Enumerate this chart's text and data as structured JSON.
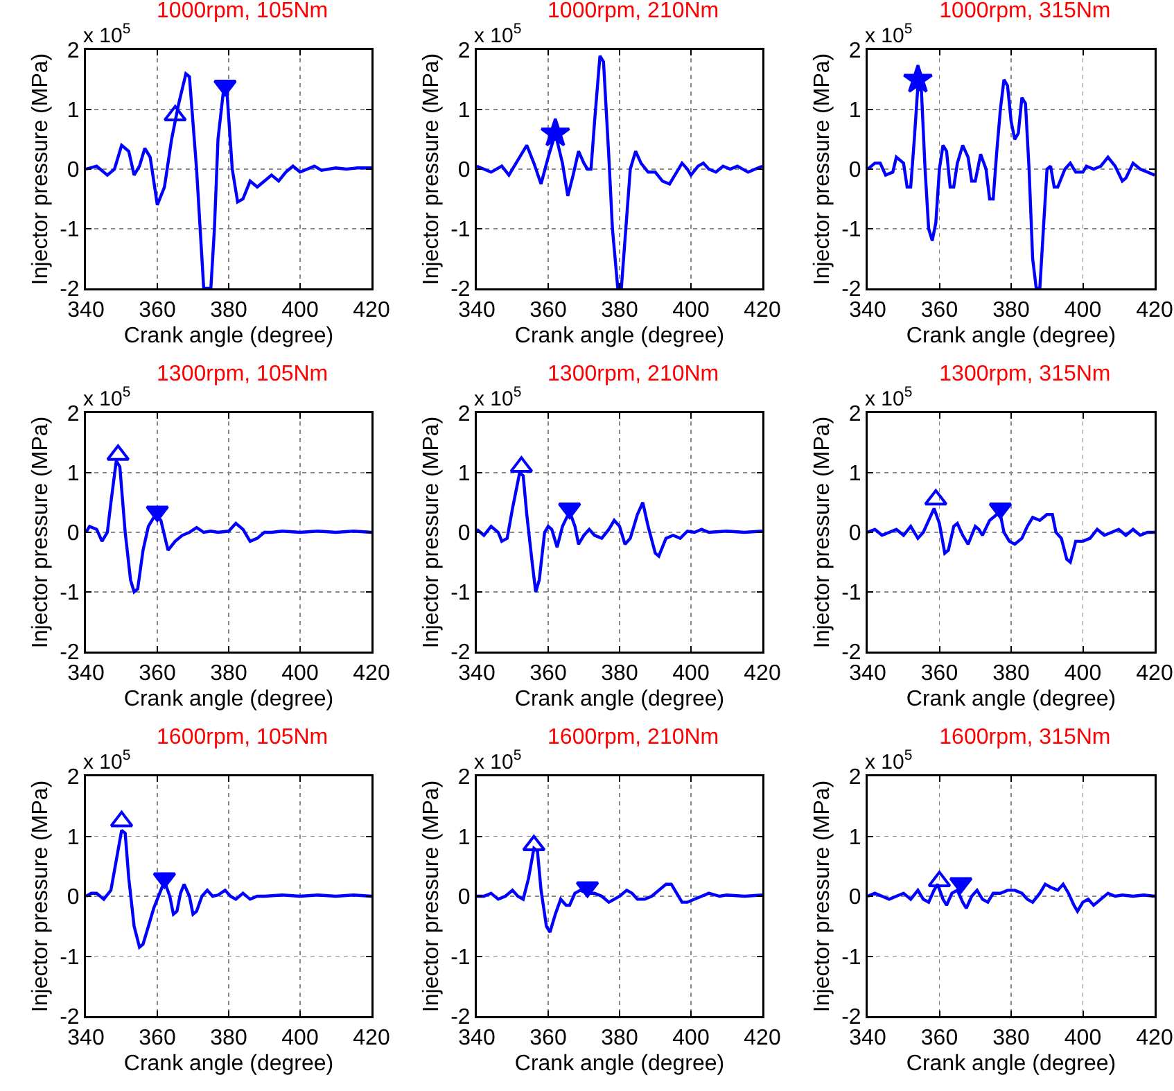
{
  "chart_data": [
    {
      "type": "line",
      "title": "1000rpm, 105Nm",
      "xlabel": "Crank angle (degree)",
      "ylabel": "Injector pressure (MPa)",
      "annotations": [
        "x 10$^{5}$"
      ],
      "xlim": [
        340,
        420
      ],
      "xticks": [
        340,
        360,
        380,
        400,
        420
      ],
      "ylim": [
        -2,
        2
      ],
      "yticks": [
        -2,
        -1,
        0,
        1,
        2
      ],
      "grid": true,
      "series": [
        {
          "type": "line",
          "color": "#0000ff",
          "marker": "none",
          "x": [
            340,
            343,
            346,
            348,
            350,
            352,
            353.5,
            355,
            356.5,
            358,
            360,
            362,
            364,
            366,
            368,
            369,
            371,
            372.5,
            373,
            375,
            376,
            377,
            378.5,
            379.5,
            381,
            382.5,
            384,
            386,
            388,
            390,
            392,
            394,
            396,
            398,
            400,
            402,
            404,
            406,
            410,
            413,
            416,
            420
          ],
          "values": [
            0,
            0.05,
            -0.1,
            0,
            0.4,
            0.3,
            -0.1,
            0.05,
            0.35,
            0.2,
            -0.6,
            -0.3,
            0.5,
            1.1,
            1.6,
            1.55,
            0,
            -1.5,
            -2,
            -2,
            -1,
            0.5,
            1.3,
            1.3,
            0,
            -0.55,
            -0.5,
            -0.2,
            -0.3,
            -0.2,
            -0.1,
            -0.2,
            -0.05,
            0.05,
            -0.05,
            0,
            0.05,
            -0.02,
            0.02,
            0,
            0.02,
            0.02
          ]
        },
        {
          "type": "scatter",
          "color": "#0000ff",
          "marker": "triangle",
          "x": [
            365
          ],
          "values": [
            0.9
          ]
        },
        {
          "type": "scatter",
          "color": "#0000ff",
          "marker": "triangle-down",
          "x": [
            379
          ],
          "values": [
            1.4
          ]
        }
      ]
    },
    {
      "type": "line",
      "title": "1000rpm, 210Nm",
      "xlabel": "Crank angle (degree)",
      "ylabel": "Injector pressure (MPa)",
      "annotations": [
        "x 10$^{5}$"
      ],
      "xlim": [
        340,
        420
      ],
      "xticks": [
        340,
        360,
        380,
        400,
        420
      ],
      "ylim": [
        -2,
        2
      ],
      "yticks": [
        -2,
        -1,
        0,
        1,
        2
      ],
      "grid": true,
      "series": [
        {
          "type": "line",
          "color": "#0000ff",
          "marker": "none",
          "x": [
            340,
            342,
            344,
            347,
            349,
            351,
            354,
            356,
            358,
            360,
            362,
            364,
            365.5,
            367,
            368.5,
            370,
            371,
            372,
            373,
            374.5,
            375.5,
            377,
            378,
            379.5,
            380.5,
            382,
            383,
            384.5,
            386,
            388,
            390,
            392,
            394,
            396,
            397.5,
            399,
            400,
            402,
            403.5,
            405,
            407,
            409,
            411,
            413,
            416,
            418,
            420
          ],
          "values": [
            0.05,
            0,
            -0.05,
            0.05,
            -0.1,
            0.1,
            0.4,
            0.1,
            -0.25,
            0.2,
            0.6,
            0.1,
            -0.45,
            -0.1,
            0.3,
            0.1,
            0,
            0,
            0.8,
            1.9,
            1.8,
            0.2,
            -1,
            -2,
            -2,
            -0.8,
            0,
            0.3,
            0.1,
            -0.05,
            -0.05,
            -0.2,
            -0.25,
            -0.05,
            0.1,
            0,
            -0.1,
            0.05,
            0.1,
            0,
            -0.05,
            0.05,
            0,
            0.05,
            -0.05,
            0,
            0.05
          ]
        },
        {
          "type": "scatter",
          "color": "#0000ff",
          "marker": "star",
          "x": [
            362
          ],
          "values": [
            0.6
          ]
        }
      ]
    },
    {
      "type": "line",
      "title": "1000rpm, 315Nm",
      "xlabel": "Crank angle (degree)",
      "ylabel": "Injector pressure (MPa)",
      "annotations": [
        "x 10$^{5}$"
      ],
      "xlim": [
        340,
        420
      ],
      "xticks": [
        340,
        360,
        380,
        400,
        420
      ],
      "ylim": [
        -2,
        2
      ],
      "yticks": [
        -2,
        -1,
        0,
        1,
        2
      ],
      "grid": true,
      "series": [
        {
          "type": "line",
          "color": "#0000ff",
          "marker": "none",
          "x": [
            340,
            342,
            343.5,
            345,
            347,
            348,
            350,
            351,
            352,
            353,
            354,
            355,
            356,
            357,
            358,
            359,
            360,
            361,
            362,
            363,
            364,
            365,
            366.5,
            368,
            369,
            370,
            371.5,
            373,
            374,
            375,
            376,
            377,
            378,
            379,
            380,
            381,
            382,
            383,
            384,
            385,
            386,
            387,
            388,
            389,
            390,
            391,
            392,
            393,
            395,
            396.5,
            398,
            400,
            401,
            403,
            405,
            407,
            409,
            411,
            412,
            414,
            416,
            418,
            420
          ],
          "values": [
            0,
            0.1,
            0.1,
            -0.1,
            -0.05,
            0.2,
            0.1,
            -0.3,
            -0.3,
            0.5,
            1.4,
            1.3,
            0,
            -1,
            -1.2,
            -0.9,
            0,
            0.4,
            0.3,
            -0.3,
            -0.3,
            0.1,
            0.4,
            0.2,
            -0.2,
            -0.2,
            0.25,
            0,
            -0.5,
            -0.5,
            0.3,
            1,
            1.5,
            1.4,
            0.8,
            0.5,
            0.6,
            1.2,
            1.1,
            0,
            -1.5,
            -2,
            -2,
            -1,
            0,
            0.05,
            -0.3,
            -0.3,
            0,
            0.1,
            -0.05,
            -0.05,
            0.05,
            0,
            0.05,
            0.2,
            0.05,
            -0.2,
            -0.15,
            0.1,
            0,
            -0.05,
            -0.1
          ]
        },
        {
          "type": "scatter",
          "color": "#0000ff",
          "marker": "star",
          "x": [
            354
          ],
          "values": [
            1.5
          ]
        }
      ]
    },
    {
      "type": "line",
      "title": "1300rpm, 105Nm",
      "xlabel": "Crank angle (degree)",
      "ylabel": "Injector pressure (MPa)",
      "annotations": [
        "x 10$^{5}$"
      ],
      "xlim": [
        340,
        420
      ],
      "xticks": [
        340,
        360,
        380,
        400,
        420
      ],
      "ylim": [
        -2,
        2
      ],
      "yticks": [
        -2,
        -1,
        0,
        1,
        2
      ],
      "grid": true,
      "series": [
        {
          "type": "line",
          "color": "#0000ff",
          "marker": "none",
          "x": [
            340,
            341,
            343,
            344.5,
            346,
            347,
            348.5,
            349.5,
            351,
            352.5,
            353.5,
            354.5,
            356,
            357.5,
            359.5,
            361,
            363,
            365,
            367,
            369,
            371,
            373,
            375,
            377,
            380,
            382,
            384,
            386,
            388,
            390,
            392,
            395,
            400,
            405,
            410,
            415,
            420
          ],
          "values": [
            0,
            0.1,
            0.05,
            -0.15,
            0,
            0.5,
            1.2,
            1.1,
            0,
            -0.8,
            -1,
            -0.95,
            -0.3,
            0.1,
            0.3,
            0.2,
            -0.3,
            -0.15,
            -0.05,
            0,
            0.08,
            0,
            0.02,
            0,
            0.02,
            0.15,
            0.05,
            -0.15,
            -0.1,
            0,
            0,
            0.02,
            0,
            0.02,
            0,
            0.02,
            0
          ]
        },
        {
          "type": "scatter",
          "color": "#0000ff",
          "marker": "triangle",
          "x": [
            349
          ],
          "values": [
            1.3
          ]
        },
        {
          "type": "scatter",
          "color": "#0000ff",
          "marker": "triangle-down",
          "x": [
            360
          ],
          "values": [
            0.35
          ]
        }
      ]
    },
    {
      "type": "line",
      "title": "1300rpm, 210Nm",
      "xlabel": "Crank angle (degree)",
      "ylabel": "Injector pressure (MPa)",
      "annotations": [
        "x 10$^{5}$"
      ],
      "xlim": [
        340,
        420
      ],
      "xticks": [
        340,
        360,
        380,
        400,
        420
      ],
      "ylim": [
        -2,
        2
      ],
      "yticks": [
        -2,
        -1,
        0,
        1,
        2
      ],
      "grid": true,
      "series": [
        {
          "type": "line",
          "color": "#0000ff",
          "marker": "none",
          "x": [
            340,
            342,
            344,
            346,
            347,
            348.5,
            350,
            352,
            353,
            354,
            355.5,
            356.5,
            357.5,
            359,
            360,
            361,
            362.5,
            364,
            366,
            367.5,
            368.5,
            370,
            371.5,
            373,
            375,
            377,
            378.5,
            380,
            381.5,
            383,
            385,
            386.5,
            388,
            390,
            391,
            393,
            395,
            397,
            399,
            401,
            403,
            405,
            410,
            415,
            420
          ],
          "values": [
            0.05,
            -0.05,
            0.1,
            0,
            -0.15,
            -0.1,
            0.4,
            1,
            0.95,
            0.3,
            -0.5,
            -1,
            -0.8,
            0,
            0.1,
            0.05,
            -0.25,
            0.1,
            0.35,
            0.1,
            -0.2,
            -0.05,
            0.05,
            -0.05,
            -0.1,
            0.05,
            0.2,
            0.1,
            -0.2,
            -0.1,
            0.3,
            0.5,
            0.1,
            -0.35,
            -0.4,
            -0.1,
            -0.05,
            -0.1,
            0.02,
            0,
            0.05,
            0,
            0.02,
            0,
            0.02
          ]
        },
        {
          "type": "scatter",
          "color": "#0000ff",
          "marker": "triangle",
          "x": [
            352.5
          ],
          "values": [
            1.1
          ]
        },
        {
          "type": "scatter",
          "color": "#0000ff",
          "marker": "triangle-down",
          "x": [
            366
          ],
          "values": [
            0.4
          ]
        }
      ]
    },
    {
      "type": "line",
      "title": "1300rpm, 315Nm",
      "xlabel": "Crank angle (degree)",
      "ylabel": "Injector pressure (MPa)",
      "annotations": [
        "x 10$^{5}$"
      ],
      "xlim": [
        340,
        420
      ],
      "xticks": [
        340,
        360,
        380,
        400,
        420
      ],
      "ylim": [
        -2,
        2
      ],
      "yticks": [
        -2,
        -1,
        0,
        1,
        2
      ],
      "grid": true,
      "series": [
        {
          "type": "line",
          "color": "#0000ff",
          "marker": "none",
          "x": [
            340,
            342,
            344,
            346,
            348,
            350,
            352,
            354,
            355.5,
            357,
            358.5,
            360,
            361.5,
            362.5,
            364,
            365,
            366.5,
            368,
            370,
            371,
            372,
            374,
            376,
            377,
            378,
            379.5,
            381,
            383,
            384.5,
            386,
            388,
            390,
            391.5,
            392.5,
            394,
            395.5,
            396.5,
            398,
            400,
            402,
            404,
            406,
            408,
            410,
            412,
            414,
            416,
            418,
            420
          ],
          "values": [
            0,
            0.05,
            -0.05,
            0,
            0.05,
            -0.05,
            0.1,
            -0.1,
            0,
            0.2,
            0.4,
            0.15,
            -0.35,
            -0.3,
            0.1,
            0.15,
            -0.05,
            -0.2,
            0.1,
            0.05,
            -0.05,
            0.2,
            0.3,
            0.3,
            0,
            -0.15,
            -0.2,
            -0.1,
            0.1,
            0.25,
            0.2,
            0.3,
            0.3,
            0,
            -0.1,
            -0.45,
            -0.5,
            -0.15,
            -0.15,
            -0.1,
            0.05,
            -0.05,
            0,
            0.05,
            -0.05,
            0.05,
            -0.05,
            0,
            0
          ]
        },
        {
          "type": "scatter",
          "color": "#0000ff",
          "marker": "triangle",
          "x": [
            359
          ],
          "values": [
            0.55
          ]
        },
        {
          "type": "scatter",
          "color": "#0000ff",
          "marker": "triangle-down",
          "x": [
            377
          ],
          "values": [
            0.4
          ]
        }
      ]
    },
    {
      "type": "line",
      "title": "1600rpm, 105Nm",
      "xlabel": "Crank angle (degree)",
      "ylabel": "Injector pressure (MPa)",
      "annotations": [
        "x 10$^{5}$"
      ],
      "xlim": [
        340,
        420
      ],
      "xticks": [
        340,
        360,
        380,
        400,
        420
      ],
      "ylim": [
        -2,
        2
      ],
      "yticks": [
        -2,
        -1,
        0,
        1,
        2
      ],
      "grid": true,
      "series": [
        {
          "type": "line",
          "color": "#0000ff",
          "marker": "none",
          "x": [
            340,
            341.5,
            343,
            345,
            347,
            348.5,
            350,
            351,
            352,
            353.5,
            355,
            356,
            357.5,
            359,
            361,
            362,
            363.5,
            364.5,
            365.5,
            366.5,
            367.5,
            369,
            370,
            371,
            372.5,
            374,
            375.5,
            377,
            379,
            380.5,
            382,
            384,
            386,
            388,
            390,
            395,
            400,
            405,
            410,
            415,
            420
          ],
          "values": [
            0,
            0.05,
            0.05,
            -0.05,
            0.1,
            0.6,
            1.1,
            1.05,
            0.3,
            -0.5,
            -0.85,
            -0.8,
            -0.5,
            -0.2,
            0.1,
            0.25,
            0,
            -0.3,
            -0.25,
            0.05,
            0.2,
            0,
            -0.3,
            -0.25,
            0,
            0.1,
            0,
            0.02,
            0.1,
            0,
            -0.05,
            0.05,
            -0.05,
            0,
            0,
            0.02,
            0,
            0.02,
            0,
            0.02,
            0
          ]
        },
        {
          "type": "scatter",
          "color": "#0000ff",
          "marker": "triangle",
          "x": [
            350
          ],
          "values": [
            1.25
          ]
        },
        {
          "type": "scatter",
          "color": "#0000ff",
          "marker": "triangle-down",
          "x": [
            362
          ],
          "values": [
            0.3
          ]
        }
      ]
    },
    {
      "type": "line",
      "title": "1600rpm, 210Nm",
      "xlabel": "Crank angle (degree)",
      "ylabel": "Injector pressure (MPa)",
      "annotations": [
        "x 10$^{5}$"
      ],
      "xlim": [
        340,
        420
      ],
      "xticks": [
        340,
        360,
        380,
        400,
        420
      ],
      "ylim": [
        -2,
        2
      ],
      "yticks": [
        -2,
        -1,
        0,
        1,
        2
      ],
      "grid": true,
      "series": [
        {
          "type": "line",
          "color": "#0000ff",
          "marker": "none",
          "x": [
            340,
            342,
            344,
            346,
            348,
            350,
            351.5,
            353,
            354.5,
            356,
            357,
            358,
            359.5,
            360.5,
            362,
            363.5,
            365,
            366,
            367.5,
            369,
            371,
            373,
            375,
            377,
            378.5,
            380,
            382,
            383.5,
            385,
            387,
            389,
            391,
            393,
            394.5,
            396,
            397.5,
            399,
            401,
            403,
            405,
            408,
            410,
            415,
            420
          ],
          "values": [
            0,
            0,
            0.05,
            -0.05,
            0,
            0.1,
            0,
            -0.05,
            0.3,
            0.8,
            0.75,
            0.1,
            -0.5,
            -0.6,
            -0.3,
            -0.05,
            -0.15,
            -0.15,
            0.05,
            0.1,
            0.05,
            0.05,
            0,
            -0.1,
            -0.05,
            0,
            0.1,
            0.05,
            -0.05,
            -0.05,
            0,
            0.1,
            0.2,
            0.2,
            0.05,
            -0.1,
            -0.1,
            -0.05,
            0,
            0.05,
            0,
            0.02,
            0,
            0.02
          ]
        },
        {
          "type": "scatter",
          "color": "#0000ff",
          "marker": "triangle",
          "x": [
            356
          ],
          "values": [
            0.85
          ]
        },
        {
          "type": "scatter",
          "color": "#0000ff",
          "marker": "triangle-down",
          "x": [
            371
          ],
          "values": [
            0.15
          ]
        }
      ]
    },
    {
      "type": "line",
      "title": "1600rpm, 315Nm",
      "xlabel": "Crank angle (degree)",
      "ylabel": "Injector pressure (MPa)",
      "annotations": [
        "x 10$^{5}$"
      ],
      "xlim": [
        340,
        420
      ],
      "xticks": [
        340,
        360,
        380,
        400,
        420
      ],
      "ylim": [
        -2,
        2
      ],
      "yticks": [
        -2,
        -1,
        0,
        1,
        2
      ],
      "grid": true,
      "series": [
        {
          "type": "line",
          "color": "#0000ff",
          "marker": "none",
          "x": [
            340,
            342,
            344,
            346,
            348,
            350,
            352,
            354,
            355.5,
            357,
            358.5,
            359.5,
            361,
            362,
            363.5,
            365,
            366.5,
            367.5,
            369,
            370.5,
            372,
            373.5,
            375,
            377,
            379,
            381,
            383,
            384.5,
            386,
            388,
            389.5,
            391,
            393,
            394.5,
            396,
            397.5,
            398.5,
            400,
            401.5,
            403,
            405,
            407,
            409,
            411,
            414,
            417,
            420
          ],
          "values": [
            0,
            0.05,
            0,
            -0.05,
            0,
            0.05,
            -0.05,
            0.1,
            -0.05,
            -0.1,
            0.1,
            0.2,
            -0.05,
            -0.15,
            0.05,
            0.1,
            -0.1,
            -0.2,
            0,
            0.1,
            -0.05,
            -0.1,
            0.05,
            0.05,
            0.1,
            0.1,
            0.05,
            -0.05,
            -0.1,
            0.05,
            0.2,
            0.15,
            0.1,
            0.2,
            0.05,
            -0.15,
            -0.25,
            -0.1,
            -0.05,
            -0.15,
            -0.05,
            0.05,
            0,
            0.02,
            0,
            0.02,
            0
          ]
        },
        {
          "type": "scatter",
          "color": "#0000ff",
          "marker": "triangle",
          "x": [
            360
          ],
          "values": [
            0.25
          ]
        },
        {
          "type": "scatter",
          "color": "#0000ff",
          "marker": "triangle-down",
          "x": [
            366
          ],
          "values": [
            0.22
          ]
        }
      ]
    }
  ]
}
